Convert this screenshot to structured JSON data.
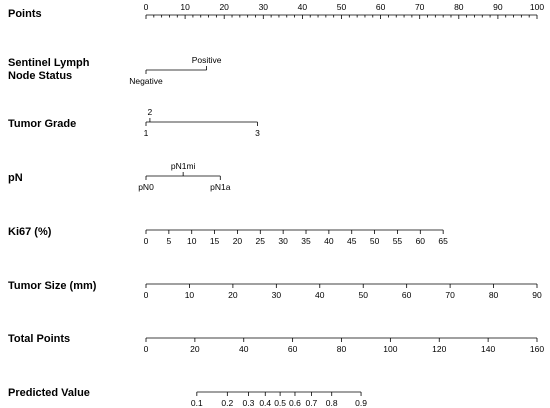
{
  "chart_data": {
    "type": "nomogram",
    "points_axis": {
      "label": "Points",
      "min": 0,
      "max": 100,
      "ticks": [
        0,
        10,
        20,
        30,
        40,
        50,
        60,
        70,
        80,
        90,
        100
      ],
      "minor_step": 2
    },
    "rows": [
      {
        "label": [
          "Sentinel Lymph",
          "Node Status"
        ],
        "kind": "categorical",
        "levels": [
          {
            "label": "Negative",
            "points": 0,
            "side": "below"
          },
          {
            "label": "Positive",
            "points": 15.5,
            "side": "above"
          }
        ]
      },
      {
        "label": [
          "Tumor Grade"
        ],
        "kind": "categorical",
        "levels": [
          {
            "label": "1",
            "points": 0,
            "side": "below"
          },
          {
            "label": "2",
            "points": 1,
            "side": "above"
          },
          {
            "label": "3",
            "points": 28.5,
            "side": "below"
          }
        ]
      },
      {
        "label": [
          "pN"
        ],
        "kind": "categorical",
        "levels": [
          {
            "label": "pN0",
            "points": 0,
            "side": "below"
          },
          {
            "label": "pN1mi",
            "points": 9.5,
            "side": "above"
          },
          {
            "label": "pN1a",
            "points": 19,
            "side": "below"
          }
        ]
      },
      {
        "label": [
          "Ki67 (%)"
        ],
        "kind": "continuous",
        "points_min": 0,
        "points_max": 76,
        "ticks": [
          0,
          5,
          10,
          15,
          20,
          25,
          30,
          35,
          40,
          45,
          50,
          55,
          60,
          65
        ]
      },
      {
        "label": [
          "Tumor Size (mm)"
        ],
        "kind": "continuous",
        "points_min": 0,
        "points_max": 100,
        "ticks": [
          0,
          10,
          20,
          30,
          40,
          50,
          60,
          70,
          80,
          90
        ]
      },
      {
        "label": [
          "Total Points"
        ],
        "kind": "continuous",
        "points_min": 0,
        "points_max": 100,
        "ticks": [
          0,
          20,
          40,
          60,
          80,
          100,
          120,
          140,
          160
        ]
      },
      {
        "label": [
          "Predicted Value"
        ],
        "kind": "nonlinear",
        "ticks": [
          {
            "label": "0.1",
            "points": 13
          },
          {
            "label": "0.2",
            "points": 20.8
          },
          {
            "label": "0.3",
            "points": 26.2
          },
          {
            "label": "0.4",
            "points": 30.5
          },
          {
            "label": "0.5",
            "points": 34.3
          },
          {
            "label": "0.6",
            "points": 38.1
          },
          {
            "label": "0.7",
            "points": 42.3
          },
          {
            "label": "0.8",
            "points": 47.5
          },
          {
            "label": "0.9",
            "points": 55
          }
        ]
      }
    ]
  }
}
